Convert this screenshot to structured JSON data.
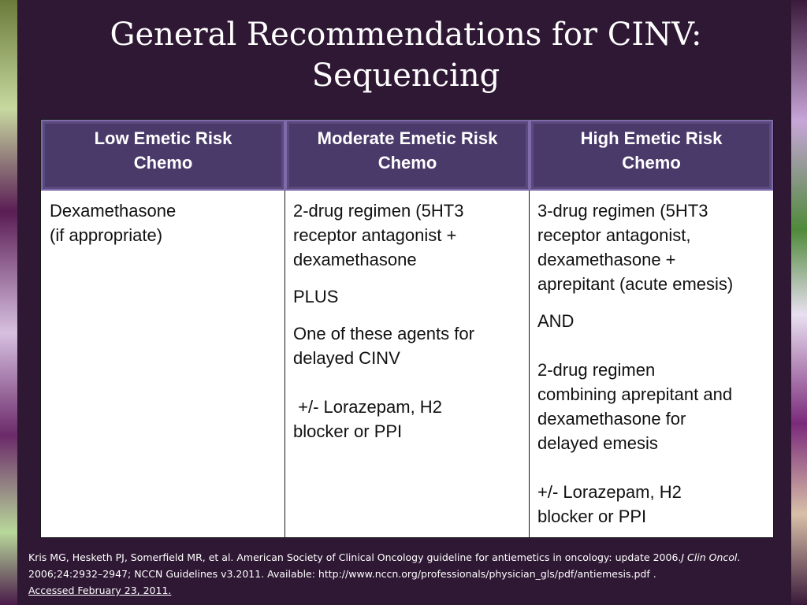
{
  "title_lines": [
    "General Recommendations for CINV:",
    "Sequencing"
  ],
  "headers": [
    [
      "Low Emetic Risk",
      "Chemo"
    ],
    [
      "Moderate Emetic Risk",
      "Chemo"
    ],
    [
      "High Emetic Risk",
      "Chemo"
    ]
  ],
  "low": [
    "Dexamethasone",
    "(if appropriate)"
  ],
  "moderate": {
    "regimen": [
      "2-drug regimen (5HT3",
      "receptor antagonist +",
      "dexamethasone"
    ],
    "plus": "PLUS",
    "agents": [
      "One of these agents for",
      "delayed CINV"
    ],
    "addon": [
      " +/- Lorazepam, H2",
      "blocker or PPI"
    ]
  },
  "high": {
    "regimen": [
      "3-drug regimen (5HT3",
      "receptor antagonist,",
      "dexamethasone +",
      "aprepitant (acute emesis)"
    ],
    "and": "AND",
    "second": [
      "2-drug regimen",
      "combining aprepitant and",
      "dexamethasone for",
      "delayed emesis"
    ],
    "addon": [
      "+/- Lorazepam, H2",
      "blocker or PPI"
    ]
  },
  "reference": {
    "part1": "Kris MG, Hesketh PJ, Somerfield MR, et al. American Society of Clinical Oncology guideline for antiemetics in oncology: update 2006.",
    "journal": "J Clin Oncol",
    "part2": ". 2006;24:2932–2947; NCCN Guidelines v3.2011. Available: http://www.nccn.org/professionals/physician_gls/pdf/antiemesis.pdf .",
    "accessed": "Accessed February 23, 2011."
  }
}
